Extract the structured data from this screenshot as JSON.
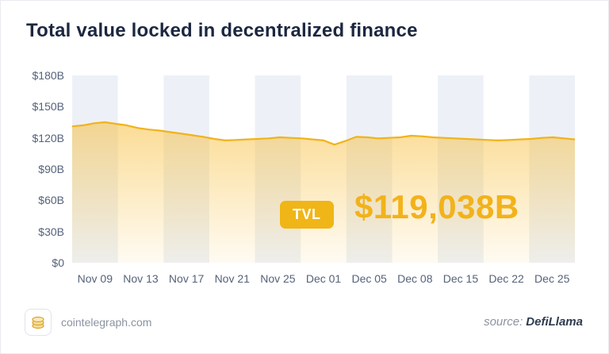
{
  "title": "Total value locked in decentralized finance",
  "chart_data": {
    "type": "area",
    "title": "Total value locked in decentralized finance",
    "xlabel": "",
    "ylabel": "",
    "ylim": [
      0,
      180
    ],
    "y_ticks": [
      "$180B",
      "$150B",
      "$120B",
      "$90B",
      "$60B",
      "$30B",
      "$0"
    ],
    "x_ticks": [
      "Nov 09",
      "Nov 13",
      "Nov 17",
      "Nov 21",
      "Nov 25",
      "Dec 01",
      "Dec 05",
      "Dec 08",
      "Dec 15",
      "Dec 22",
      "Dec 25"
    ],
    "series_name": "TVL",
    "unit": "$B",
    "grid": "vertical-stripes",
    "legend": "none",
    "values": [
      131,
      132,
      134,
      135,
      133.5,
      132,
      129.5,
      128,
      127,
      125.5,
      124,
      122.5,
      121,
      119,
      117.5,
      118,
      118.5,
      119,
      119.5,
      120.5,
      120,
      119.5,
      118.5,
      117.5,
      113.5,
      117,
      121,
      120.5,
      119.5,
      120,
      120.5,
      122,
      121.5,
      120.5,
      120,
      119.5,
      119,
      118.5,
      118,
      117.5,
      118,
      118.5,
      119,
      120,
      120.5,
      119.5,
      118.5
    ]
  },
  "overlay": {
    "badge_label": "TVL",
    "value_text": "$119,038B"
  },
  "footer": {
    "brand": "cointelegraph.com",
    "source_label": "source:",
    "source_value": "DefiLlama"
  },
  "colors": {
    "line": "#f2b21a",
    "area_top": "rgba(247,185,44,0.50)",
    "area_bottom": "rgba(247,185,44,0.06)",
    "badge": "#f0b517",
    "value": "#f2b21a",
    "stripe": "#edf1f7"
  }
}
